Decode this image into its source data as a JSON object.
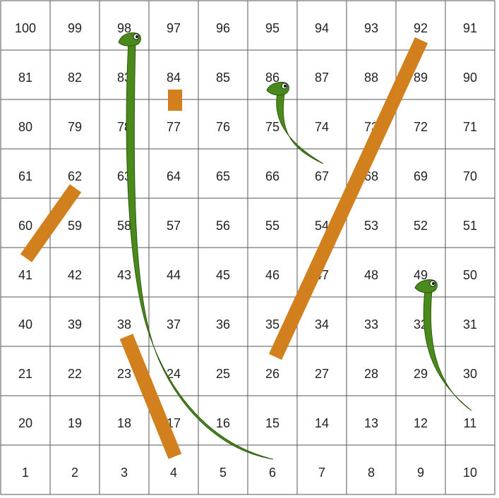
{
  "board": {
    "rows": [
      [
        100,
        99,
        98,
        97,
        96,
        95,
        94,
        93,
        92,
        91
      ],
      [
        81,
        82,
        83,
        84,
        85,
        86,
        87,
        88,
        89,
        90
      ],
      [
        80,
        79,
        78,
        77,
        76,
        75,
        74,
        73,
        72,
        71
      ],
      [
        61,
        62,
        63,
        64,
        65,
        66,
        67,
        68,
        69,
        70
      ],
      [
        60,
        59,
        58,
        57,
        56,
        55,
        54,
        53,
        52,
        51
      ],
      [
        41,
        42,
        43,
        44,
        45,
        46,
        47,
        48,
        49,
        50
      ],
      [
        40,
        39,
        38,
        37,
        36,
        35,
        34,
        33,
        32,
        31
      ],
      [
        21,
        22,
        23,
        24,
        25,
        26,
        27,
        28,
        29,
        30
      ],
      [
        20,
        19,
        18,
        17,
        16,
        15,
        14,
        13,
        12,
        11
      ],
      [
        1,
        2,
        3,
        4,
        5,
        6,
        7,
        8,
        9,
        10
      ]
    ]
  },
  "ladders": [
    {
      "from": 26,
      "to": 92
    },
    {
      "from": 4,
      "to": 38
    },
    {
      "from": 41,
      "to": 62
    },
    {
      "from": 84,
      "to": 84
    }
  ],
  "snakes": [
    {
      "head": 98,
      "tail": 6
    },
    {
      "head": 86,
      "tail": 67
    },
    {
      "head": 49,
      "tail": 11
    }
  ],
  "colors": {
    "ladder": "#d27f1e",
    "snake": "#4a8a1c",
    "grid": "#555555"
  }
}
